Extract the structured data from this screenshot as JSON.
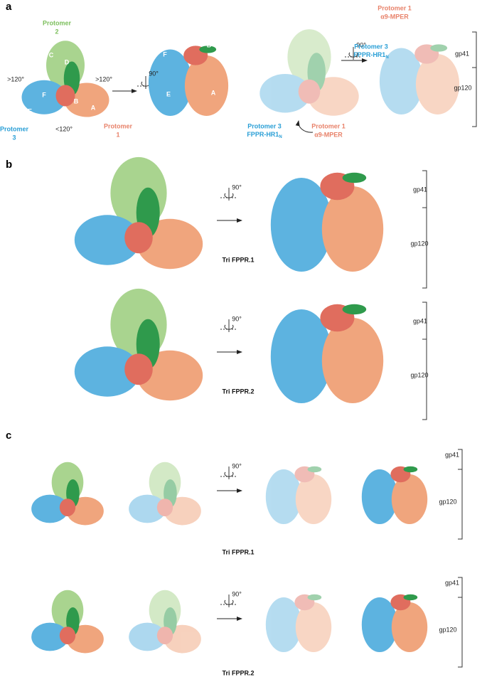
{
  "panel_a": {
    "label": "a",
    "top_view": {
      "protomer_2": [
        "Protomer",
        "2"
      ],
      "protomer_3": [
        "Protomer",
        "3"
      ],
      "protomer_1": [
        "Protomer",
        "1"
      ],
      "domains": [
        "C",
        "D",
        "F",
        "B",
        "A",
        "E"
      ],
      "angles": [
        ">120°",
        ">120°",
        "<120°"
      ]
    },
    "rotation": "90°",
    "side_view": {
      "domains": [
        "F",
        "B",
        "E",
        "A"
      ]
    },
    "ribbon_top": {
      "protomer_3": [
        "Protomer 3",
        {
          "text": "FPPR-HR1",
          "subscript": "N"
        }
      ],
      "protomer_1": [
        "Protomer 1",
        "α9-MPER"
      ]
    },
    "rotation_2": "90°",
    "ribbon_side": {
      "protomer_1": [
        "Protomer 1",
        "α9-MPER"
      ],
      "protomer_3": [
        "Protomer 3",
        {
          "text": "FPPR-HR1",
          "subscript": "N"
        }
      ]
    },
    "subunits": [
      "gp41",
      "gp120"
    ]
  },
  "panel_b": {
    "label": "b",
    "rows": [
      {
        "rotation": "90°",
        "name": "Tri FPPR.1",
        "subunits": [
          "gp41",
          "gp120"
        ]
      },
      {
        "rotation": "90°",
        "name": "Tri FPPR.2",
        "subunits": [
          "gp41",
          "gp120"
        ]
      }
    ]
  },
  "panel_c": {
    "label": "c",
    "rows": [
      {
        "rotation": "90°",
        "name": "Tri FPPR.1",
        "subunits": [
          "gp41",
          "gp120"
        ]
      },
      {
        "rotation": "90°",
        "name": "Tri FPPR.2",
        "subunits": [
          "gp41",
          "gp120"
        ]
      }
    ]
  }
}
